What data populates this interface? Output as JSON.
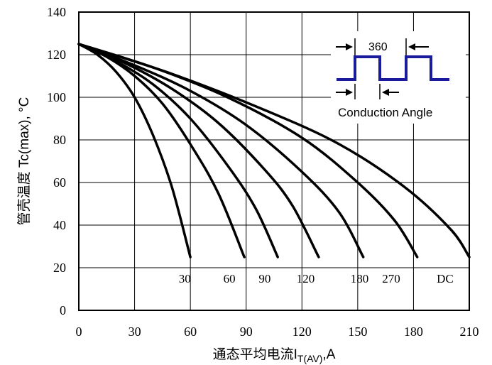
{
  "chart_data": {
    "type": "line",
    "xlabel": "通态平均电流I",
    "xlabel_sub": "T(AV)",
    "xlabel_unit": ",A",
    "ylabel": "管壳温度 Tc(max), °C",
    "xlim": [
      0,
      210
    ],
    "ylim": [
      0,
      140
    ],
    "x_ticks": [
      "0",
      "30",
      "60",
      "90",
      "120",
      "150",
      "180",
      "210"
    ],
    "y_ticks": [
      "0",
      "20",
      "40",
      "60",
      "80",
      "100",
      "120",
      "140"
    ],
    "grid": true,
    "series": [
      {
        "name": "30",
        "x": [
          0,
          10,
          20,
          30,
          40,
          50,
          60
        ],
        "y": [
          125,
          120,
          112,
          100,
          82,
          58,
          25
        ]
      },
      {
        "name": "60",
        "x": [
          0,
          15,
          30,
          45,
          60,
          75,
          89
        ],
        "y": [
          125,
          119,
          110,
          97,
          78,
          55,
          25
        ]
      },
      {
        "name": "90",
        "x": [
          0,
          20,
          40,
          60,
          80,
          95,
          107
        ],
        "y": [
          125,
          117,
          106,
          90,
          68,
          48,
          25
        ]
      },
      {
        "name": "120",
        "x": [
          0,
          25,
          50,
          75,
          100,
          115,
          129
        ],
        "y": [
          125,
          116,
          104,
          88,
          66,
          49,
          25
        ]
      },
      {
        "name": "180",
        "x": [
          0,
          30,
          60,
          90,
          120,
          140,
          153
        ],
        "y": [
          125,
          115,
          103,
          87,
          65,
          46,
          25
        ]
      },
      {
        "name": "270",
        "x": [
          0,
          40,
          80,
          120,
          150,
          170,
          182
        ],
        "y": [
          125,
          114,
          100,
          81,
          60,
          42,
          25
        ]
      },
      {
        "name": "DC",
        "x": [
          0,
          50,
          100,
          140,
          175,
          200,
          210
        ],
        "y": [
          125,
          111,
          94,
          78,
          58,
          38,
          25
        ]
      }
    ],
    "curve_labels": [
      {
        "text": "30",
        "x": 57
      },
      {
        "text": "60",
        "x": 81
      },
      {
        "text": "90",
        "x": 100
      },
      {
        "text": "120",
        "x": 122
      },
      {
        "text": "180",
        "x": 151
      },
      {
        "text": "270",
        "x": 168
      },
      {
        "text": "DC",
        "x": 197
      }
    ],
    "curve_label_y": 15,
    "inset": {
      "angle_label": "360",
      "caption": "Conduction Angle",
      "waveform_color": "#1a1a9c"
    }
  }
}
